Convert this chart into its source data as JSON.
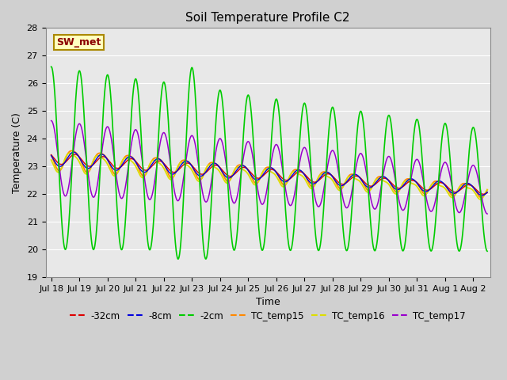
{
  "title": "Soil Temperature Profile C2",
  "xlabel": "Time",
  "ylabel": "Temperature (C)",
  "annotation": "SW_met",
  "ylim": [
    19.0,
    28.0
  ],
  "yticks": [
    19.0,
    20.0,
    21.0,
    22.0,
    23.0,
    24.0,
    25.0,
    26.0,
    27.0,
    28.0
  ],
  "xtick_labels": [
    "Jul 18",
    "Jul 19",
    "Jul 20",
    "Jul 21",
    "Jul 22",
    "Jul 23",
    "Jul 24",
    "Jul 25",
    "Jul 26",
    "Jul 27",
    "Jul 28",
    "Jul 29",
    "Jul 30",
    "Jul 31",
    "Aug 1",
    "Aug 2"
  ],
  "colors": {
    "-32cm": "#dd0000",
    "-8cm": "#0000dd",
    "-2cm": "#00cc00",
    "TC_temp15": "#ff8800",
    "TC_temp16": "#dddd00",
    "TC_temp17": "#9900cc"
  },
  "fig_bg": "#d0d0d0",
  "ax_bg": "#e8e8e8",
  "grid_color": "#ffffff",
  "n_points_per_day": 144,
  "n_days": 15.5
}
